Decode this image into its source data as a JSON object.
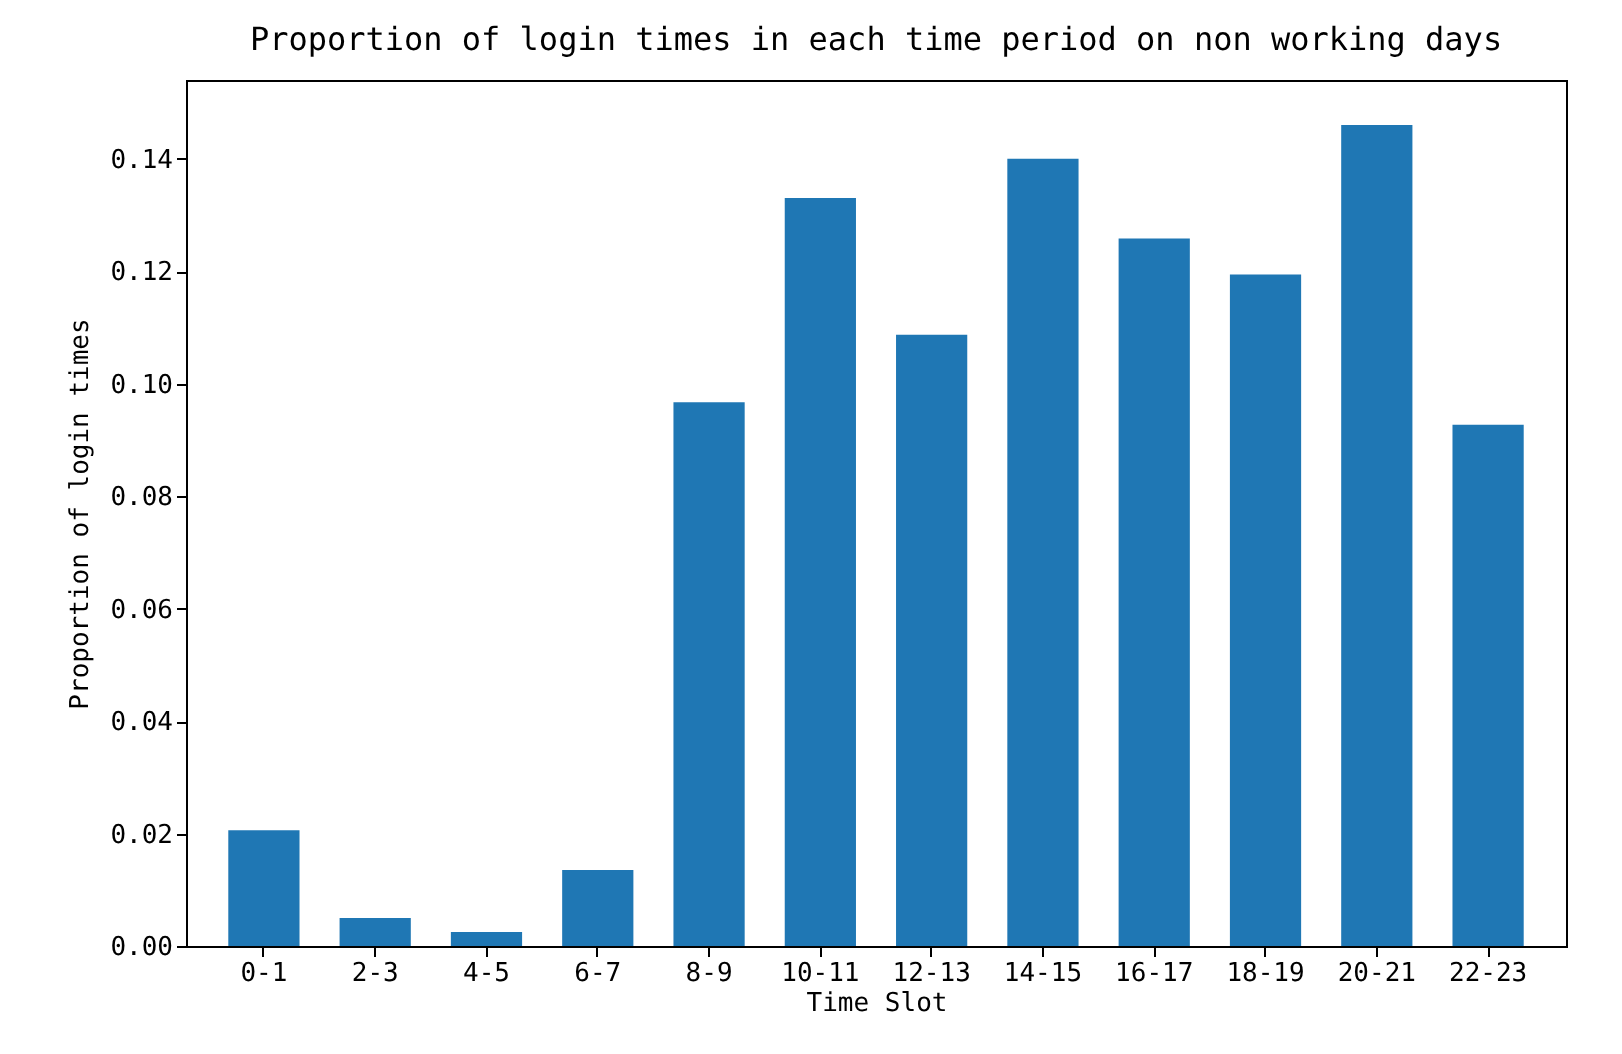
{
  "chart_data": {
    "type": "bar",
    "title": "Proportion of login times in each time period on non working days",
    "xlabel": "Time Slot",
    "ylabel": "Proportion of login times",
    "categories": [
      "0-1",
      "2-3",
      "4-5",
      "6-7",
      "8-9",
      "10-11",
      "12-13",
      "14-15",
      "16-17",
      "18-19",
      "20-21",
      "22-23"
    ],
    "values": [
      0.0206,
      0.005,
      0.0025,
      0.0135,
      0.0967,
      0.133,
      0.1087,
      0.14,
      0.1258,
      0.1194,
      0.146,
      0.0927
    ],
    "color": "#1f77b4",
    "ylim": [
      0,
      0.154
    ],
    "yticks": [
      {
        "value": 0,
        "label": "0.00"
      },
      {
        "value": 0.02,
        "label": "0.02"
      },
      {
        "value": 0.04,
        "label": "0.04"
      },
      {
        "value": 0.06,
        "label": "0.06"
      },
      {
        "value": 0.08,
        "label": "0.08"
      },
      {
        "value": 0.1,
        "label": "0.10"
      },
      {
        "value": 0.12,
        "label": "0.12"
      },
      {
        "value": 0.14,
        "label": "0.14"
      }
    ],
    "grid": false
  }
}
